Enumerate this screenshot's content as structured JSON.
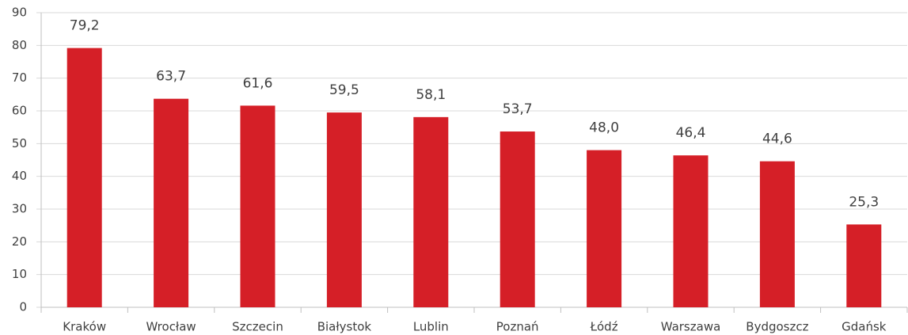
{
  "chart_data": {
    "type": "bar",
    "categories": [
      "Kraków",
      "Wrocław",
      "Szczecin",
      "Białystok",
      "Lublin",
      "Poznań",
      "Łódź",
      "Warszawa",
      "Bydgoszcz",
      "Gdańsk"
    ],
    "values": [
      79.2,
      63.7,
      61.6,
      59.5,
      58.1,
      53.7,
      48.0,
      46.4,
      44.6,
      25.3
    ],
    "value_labels": [
      "79,2",
      "63,7",
      "61,6",
      "59,5",
      "58,1",
      "53,7",
      "48,0",
      "46,4",
      "44,6",
      "25,3"
    ],
    "color": "#d51f27",
    "ylim": [
      0,
      90
    ],
    "yticks": [
      0,
      10,
      20,
      30,
      40,
      50,
      60,
      70,
      80,
      90
    ],
    "grid": true
  }
}
